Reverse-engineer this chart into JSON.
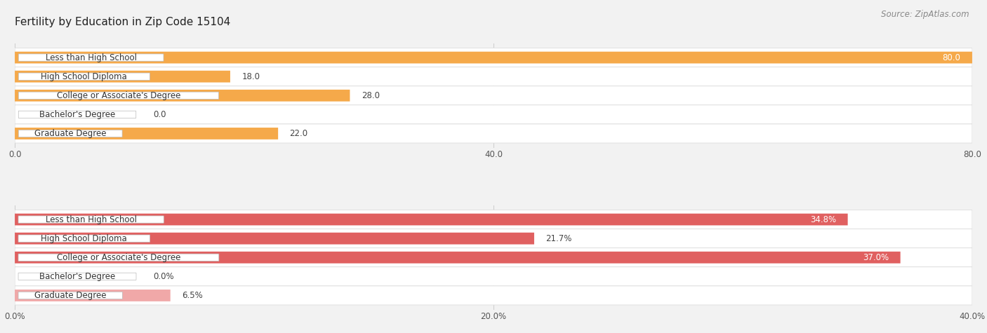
{
  "title": "Fertility by Education in Zip Code 15104",
  "source": "Source: ZipAtlas.com",
  "top_chart": {
    "categories": [
      "Less than High School",
      "High School Diploma",
      "College or Associate's Degree",
      "Bachelor's Degree",
      "Graduate Degree"
    ],
    "values": [
      80.0,
      18.0,
      28.0,
      0.0,
      22.0
    ],
    "xlim": [
      0,
      80
    ],
    "xticks": [
      0.0,
      40.0,
      80.0
    ],
    "xtick_labels": [
      "0.0",
      "40.0",
      "80.0"
    ],
    "bar_color": "#F5A94A",
    "bar_light_color": "#FAD4A0",
    "threshold_light": 15
  },
  "bottom_chart": {
    "categories": [
      "Less than High School",
      "High School Diploma",
      "College or Associate's Degree",
      "Bachelor's Degree",
      "Graduate Degree"
    ],
    "values": [
      34.8,
      21.7,
      37.0,
      0.0,
      6.5
    ],
    "xlim": [
      0,
      40
    ],
    "xticks": [
      0.0,
      20.0,
      40.0
    ],
    "xtick_labels": [
      "0.0%",
      "20.0%",
      "40.0%"
    ],
    "bar_color": "#E06060",
    "bar_light_color": "#F0A8A8",
    "threshold_light": 10
  },
  "bg_color": "#F2F2F2",
  "row_bg_color": "#FFFFFF",
  "row_border_color": "#DDDDDD",
  "title_fontsize": 11,
  "source_fontsize": 8.5,
  "label_fontsize": 8.5,
  "value_fontsize": 8.5,
  "grid_color": "#CCCCCC"
}
